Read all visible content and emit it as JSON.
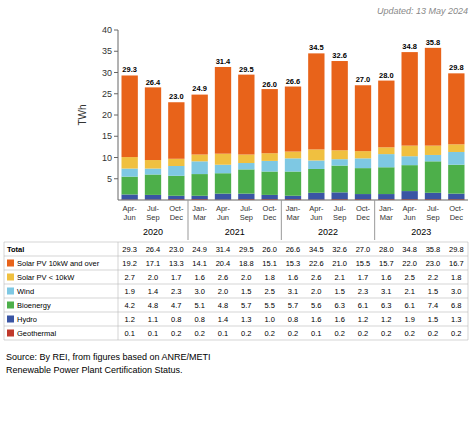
{
  "chart_data": {
    "type": "bar",
    "stacked": true,
    "grid": false,
    "subtitle": "Updated: 13 May 2024",
    "annotations": [
      "Source: By REI, from figures based on ANRE/METI\nRenewable Power Plant Certification Status."
    ],
    "ylabel": "TWh",
    "ylim": [
      0,
      40
    ],
    "yticks": [
      5,
      10,
      15,
      20,
      25,
      30,
      35,
      40
    ],
    "categories": [
      "Apr-\nJun",
      "Jul-\nSep",
      "Oct-\nDec",
      "Jan-\nMar",
      "Apr-\nJun",
      "Jul-\nSep",
      "Oct-\nDec",
      "Jan-\nMar",
      "Apr-\nJun",
      "Jul-\nSep",
      "Oct-\nDec",
      "Jan-\nMar",
      "Apr-\nJun",
      "Jul-\nSep",
      "Oct-\nDec"
    ],
    "groups": [
      {
        "label": "2020",
        "size": 3
      },
      {
        "label": "2021",
        "size": 4
      },
      {
        "label": "2022",
        "size": 4
      },
      {
        "label": "2023",
        "size": 4
      }
    ],
    "series": [
      {
        "name": "Geothermal",
        "color": "#C0392B",
        "values": [
          0.1,
          0.1,
          0.2,
          0.2,
          0.1,
          0.2,
          0.2,
          0.2,
          0.1,
          0.2,
          0.2,
          0.2,
          0.2,
          0.2,
          0.2
        ]
      },
      {
        "name": "Hydro",
        "color": "#3A55A4",
        "values": [
          1.2,
          1.1,
          0.8,
          0.8,
          1.4,
          1.3,
          1.0,
          0.8,
          1.6,
          1.6,
          1.2,
          1.2,
          1.9,
          1.5,
          1.3
        ],
        "value_labels": [
          "1.2",
          "1.1",
          "0.8",
          "0.8",
          "1.4",
          "1.3",
          "1.0",
          "0.8",
          "1.6",
          "1.6",
          "1.2",
          "1.2",
          "1.9",
          "1.5",
          "1.3"
        ]
      },
      {
        "name": "Bioenergy",
        "color": "#4DAF4A",
        "values": [
          4.2,
          4.8,
          4.7,
          5.1,
          4.8,
          5.7,
          5.5,
          5.7,
          5.6,
          6.3,
          6.1,
          6.3,
          6.1,
          7.4,
          6.8
        ]
      },
      {
        "name": "Wind",
        "color": "#7EC8E3",
        "values": [
          1.9,
          1.4,
          2.3,
          3.0,
          2.0,
          1.5,
          2.5,
          3.1,
          2.0,
          1.5,
          2.3,
          3.1,
          2.1,
          1.5,
          3.0
        ],
        "value_labels": [
          "1.9",
          "1.4",
          "2.3",
          "3.0",
          "2.0",
          "1.5",
          "2.5",
          "3.1",
          "2.0",
          "1.5",
          "2.3",
          "3.1",
          "2.1",
          "1.5",
          "3.0"
        ]
      },
      {
        "name": "Solar PV < 10kW",
        "color": "#F0C040",
        "values": [
          2.7,
          2.0,
          1.7,
          1.6,
          2.6,
          2.0,
          1.8,
          1.6,
          2.6,
          2.1,
          1.7,
          1.6,
          2.5,
          2.2,
          1.8
        ],
        "value_labels": [
          "2.7",
          "2.0",
          "1.7",
          "1.6",
          "2.6",
          "2.0",
          "1.8",
          "1.6",
          "2.6",
          "2.1",
          "1.7",
          "1.6",
          "2.5",
          "2.2",
          "1.8"
        ]
      },
      {
        "name": "Solar PV 10kW and over",
        "color": "#E8631A",
        "values": [
          19.2,
          17.1,
          13.3,
          14.1,
          20.4,
          18.8,
          15.1,
          15.3,
          22.6,
          21.0,
          15.5,
          15.7,
          22.0,
          23.0,
          16.7
        ],
        "value_labels": [
          "19.2",
          "17.1",
          "13.3",
          "14.1",
          "20.4",
          "18.8",
          "15.1",
          "15.3",
          "22.6",
          "21.0",
          "15.5",
          "15.7",
          "22.0",
          "23.0",
          "16.7"
        ]
      }
    ],
    "total_label": "Total",
    "totals": [
      29.3,
      26.4,
      23.0,
      24.9,
      31.4,
      29.5,
      26.0,
      26.6,
      34.5,
      32.6,
      27.0,
      28.0,
      34.8,
      35.8,
      29.8
    ],
    "total_labels": [
      "29.3",
      "26.4",
      "23.0",
      "24.9",
      "31.4",
      "29.5",
      "26.0",
      "26.6",
      "34.5",
      "32.6",
      "27.0",
      "28.0",
      "34.8",
      "35.8",
      "29.8"
    ]
  }
}
